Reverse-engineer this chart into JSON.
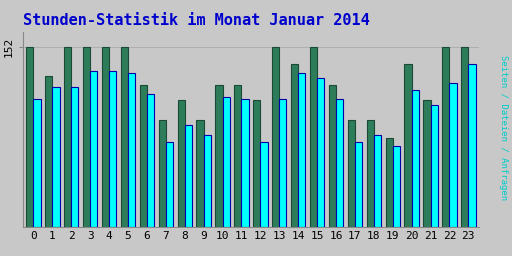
{
  "title": "Stunden-Statistik im Monat Januar 2014",
  "title_color": "#0000cc",
  "background_color": "#c8c8c8",
  "plot_bg_color": "#c8c8c8",
  "ylabel_right": "Seiten / Dateien / Anfragen",
  "hours": [
    0,
    1,
    2,
    3,
    4,
    5,
    6,
    7,
    8,
    9,
    10,
    11,
    12,
    13,
    14,
    15,
    16,
    17,
    18,
    19,
    20,
    21,
    22,
    23
  ],
  "green_vals": [
    152,
    128,
    152,
    152,
    152,
    152,
    120,
    90,
    107,
    90,
    120,
    120,
    107,
    152,
    138,
    152,
    120,
    90,
    90,
    75,
    138,
    107,
    152,
    152
  ],
  "cyan_vals": [
    108,
    118,
    118,
    132,
    132,
    130,
    112,
    72,
    86,
    78,
    110,
    108,
    72,
    108,
    130,
    126,
    108,
    72,
    78,
    68,
    116,
    103,
    122,
    138
  ],
  "bar_width": 0.38,
  "ylim": [
    0,
    165
  ],
  "ytick_val": 152,
  "green_color": "#2e7d5a",
  "cyan_color": "#00ffff",
  "cyan_edge_color": "#0000aa",
  "green_edge_color": "#1a4a35",
  "title_fontsize": 11,
  "tick_fontsize": 8
}
